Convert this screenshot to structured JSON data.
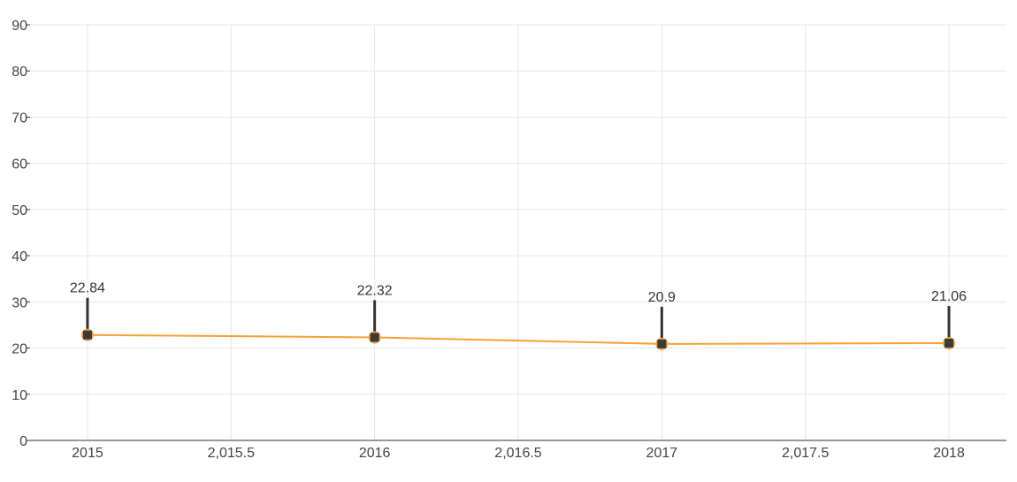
{
  "chart_data": {
    "type": "line",
    "x": [
      2015,
      2016,
      2017,
      2018
    ],
    "series": [
      {
        "values": [
          22.84,
          22.32,
          20.9,
          21.06
        ]
      }
    ],
    "data_labels": [
      "22.84",
      "22.32",
      "20.9",
      "21.06"
    ],
    "x_ticks": [
      2015,
      2015.5,
      2016,
      2016.5,
      2017,
      2017.5,
      2018
    ],
    "x_tick_labels": [
      "2015",
      "2,015.5",
      "2016",
      "2,016.5",
      "2017",
      "2,017.5",
      "2018"
    ],
    "y_ticks": [
      0,
      10,
      20,
      30,
      40,
      50,
      60,
      70,
      80,
      90
    ],
    "y_tick_labels": [
      "0",
      "10",
      "20",
      "30",
      "40",
      "50",
      "60",
      "70",
      "80",
      "90"
    ],
    "xlim": [
      2014.8,
      2018.2
    ],
    "ylim": [
      0,
      90
    ],
    "title": "",
    "xlabel": "",
    "ylabel": "",
    "grid": true,
    "legend": "none",
    "colors": {
      "line": "#f7a035",
      "marker_fill": "#3a3a3a",
      "marker_stroke": "#f7a035",
      "stem": "#333333"
    }
  }
}
